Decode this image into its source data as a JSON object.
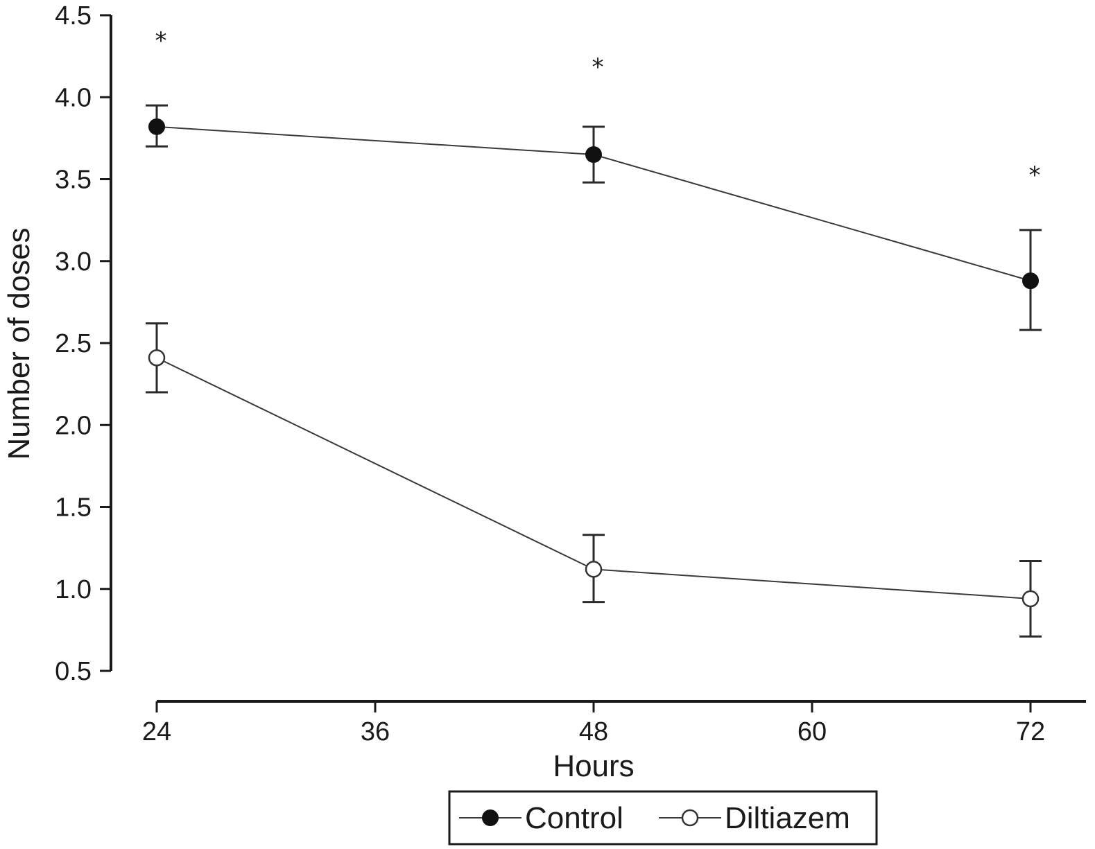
{
  "chart_data": {
    "type": "line",
    "title": "",
    "xlabel": "Hours",
    "ylabel": "Number of doses",
    "xlim": [
      24,
      72
    ],
    "ylim": [
      0.5,
      4.5
    ],
    "x_ticks": [
      24,
      36,
      48,
      60,
      72
    ],
    "y_ticks": [
      0.5,
      1.0,
      1.5,
      2.0,
      2.5,
      3.0,
      3.5,
      4.0,
      4.5
    ],
    "x_tick_labels": [
      "24",
      "36",
      "48",
      "60",
      "72"
    ],
    "y_tick_labels": [
      "0.5",
      "1.0",
      "1.5",
      "2.0",
      "2.5",
      "3.0",
      "3.5",
      "4.0",
      "4.5"
    ],
    "grid": false,
    "legend_position": "bottom-center",
    "x": [
      24,
      48,
      72
    ],
    "series": [
      {
        "name": "Control",
        "marker": "filled-circle",
        "color": "#111111",
        "values": [
          3.82,
          3.65,
          2.88
        ],
        "error_low": [
          3.7,
          3.48,
          2.58
        ],
        "error_high": [
          3.95,
          3.82,
          3.19
        ]
      },
      {
        "name": "Diltiazem",
        "marker": "open-circle",
        "color": "#ffffff",
        "values": [
          2.41,
          1.12,
          0.94
        ],
        "error_low": [
          2.2,
          0.92,
          0.71
        ],
        "error_high": [
          2.62,
          1.33,
          1.17
        ]
      }
    ],
    "annotations": [
      {
        "text": "*",
        "x": 24,
        "y": 4.39
      },
      {
        "text": "*",
        "x": 48,
        "y": 4.23
      },
      {
        "text": "*",
        "x": 72,
        "y": 3.57
      }
    ]
  }
}
